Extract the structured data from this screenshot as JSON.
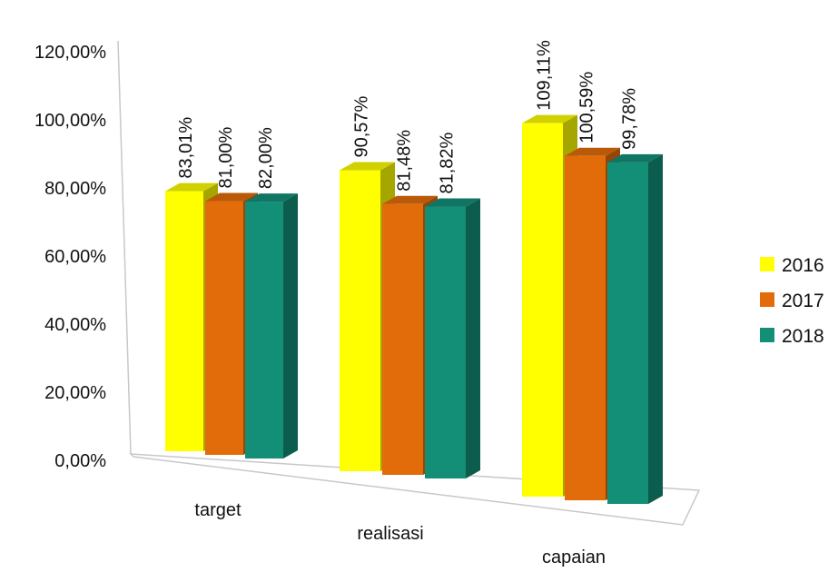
{
  "chart_data": {
    "type": "bar",
    "title": "",
    "xlabel": "",
    "ylabel": "",
    "ylim": [
      0,
      120
    ],
    "y_ticks": [
      "0,00%",
      "20,00%",
      "40,00%",
      "60,00%",
      "80,00%",
      "100,00%",
      "120,00%"
    ],
    "categories": [
      "target",
      "realisasi",
      "capaian"
    ],
    "series": [
      {
        "name": "2016",
        "color": "#FFFF00",
        "values": [
          83.01,
          90.57,
          109.11
        ],
        "labels": [
          "83,01%",
          "90,57%",
          "109,11%"
        ]
      },
      {
        "name": "2017",
        "color": "#E36C0A",
        "values": [
          81.0,
          81.48,
          100.59
        ],
        "labels": [
          "81,00%",
          "81,48%",
          "100,59%"
        ]
      },
      {
        "name": "2018",
        "color": "#138F77",
        "values": [
          82.0,
          81.82,
          99.78
        ],
        "labels": [
          "82,00%",
          "81,82%",
          "99,78%"
        ]
      }
    ],
    "legend_position": "right",
    "grid": false,
    "style": "3d-clustered-column"
  }
}
